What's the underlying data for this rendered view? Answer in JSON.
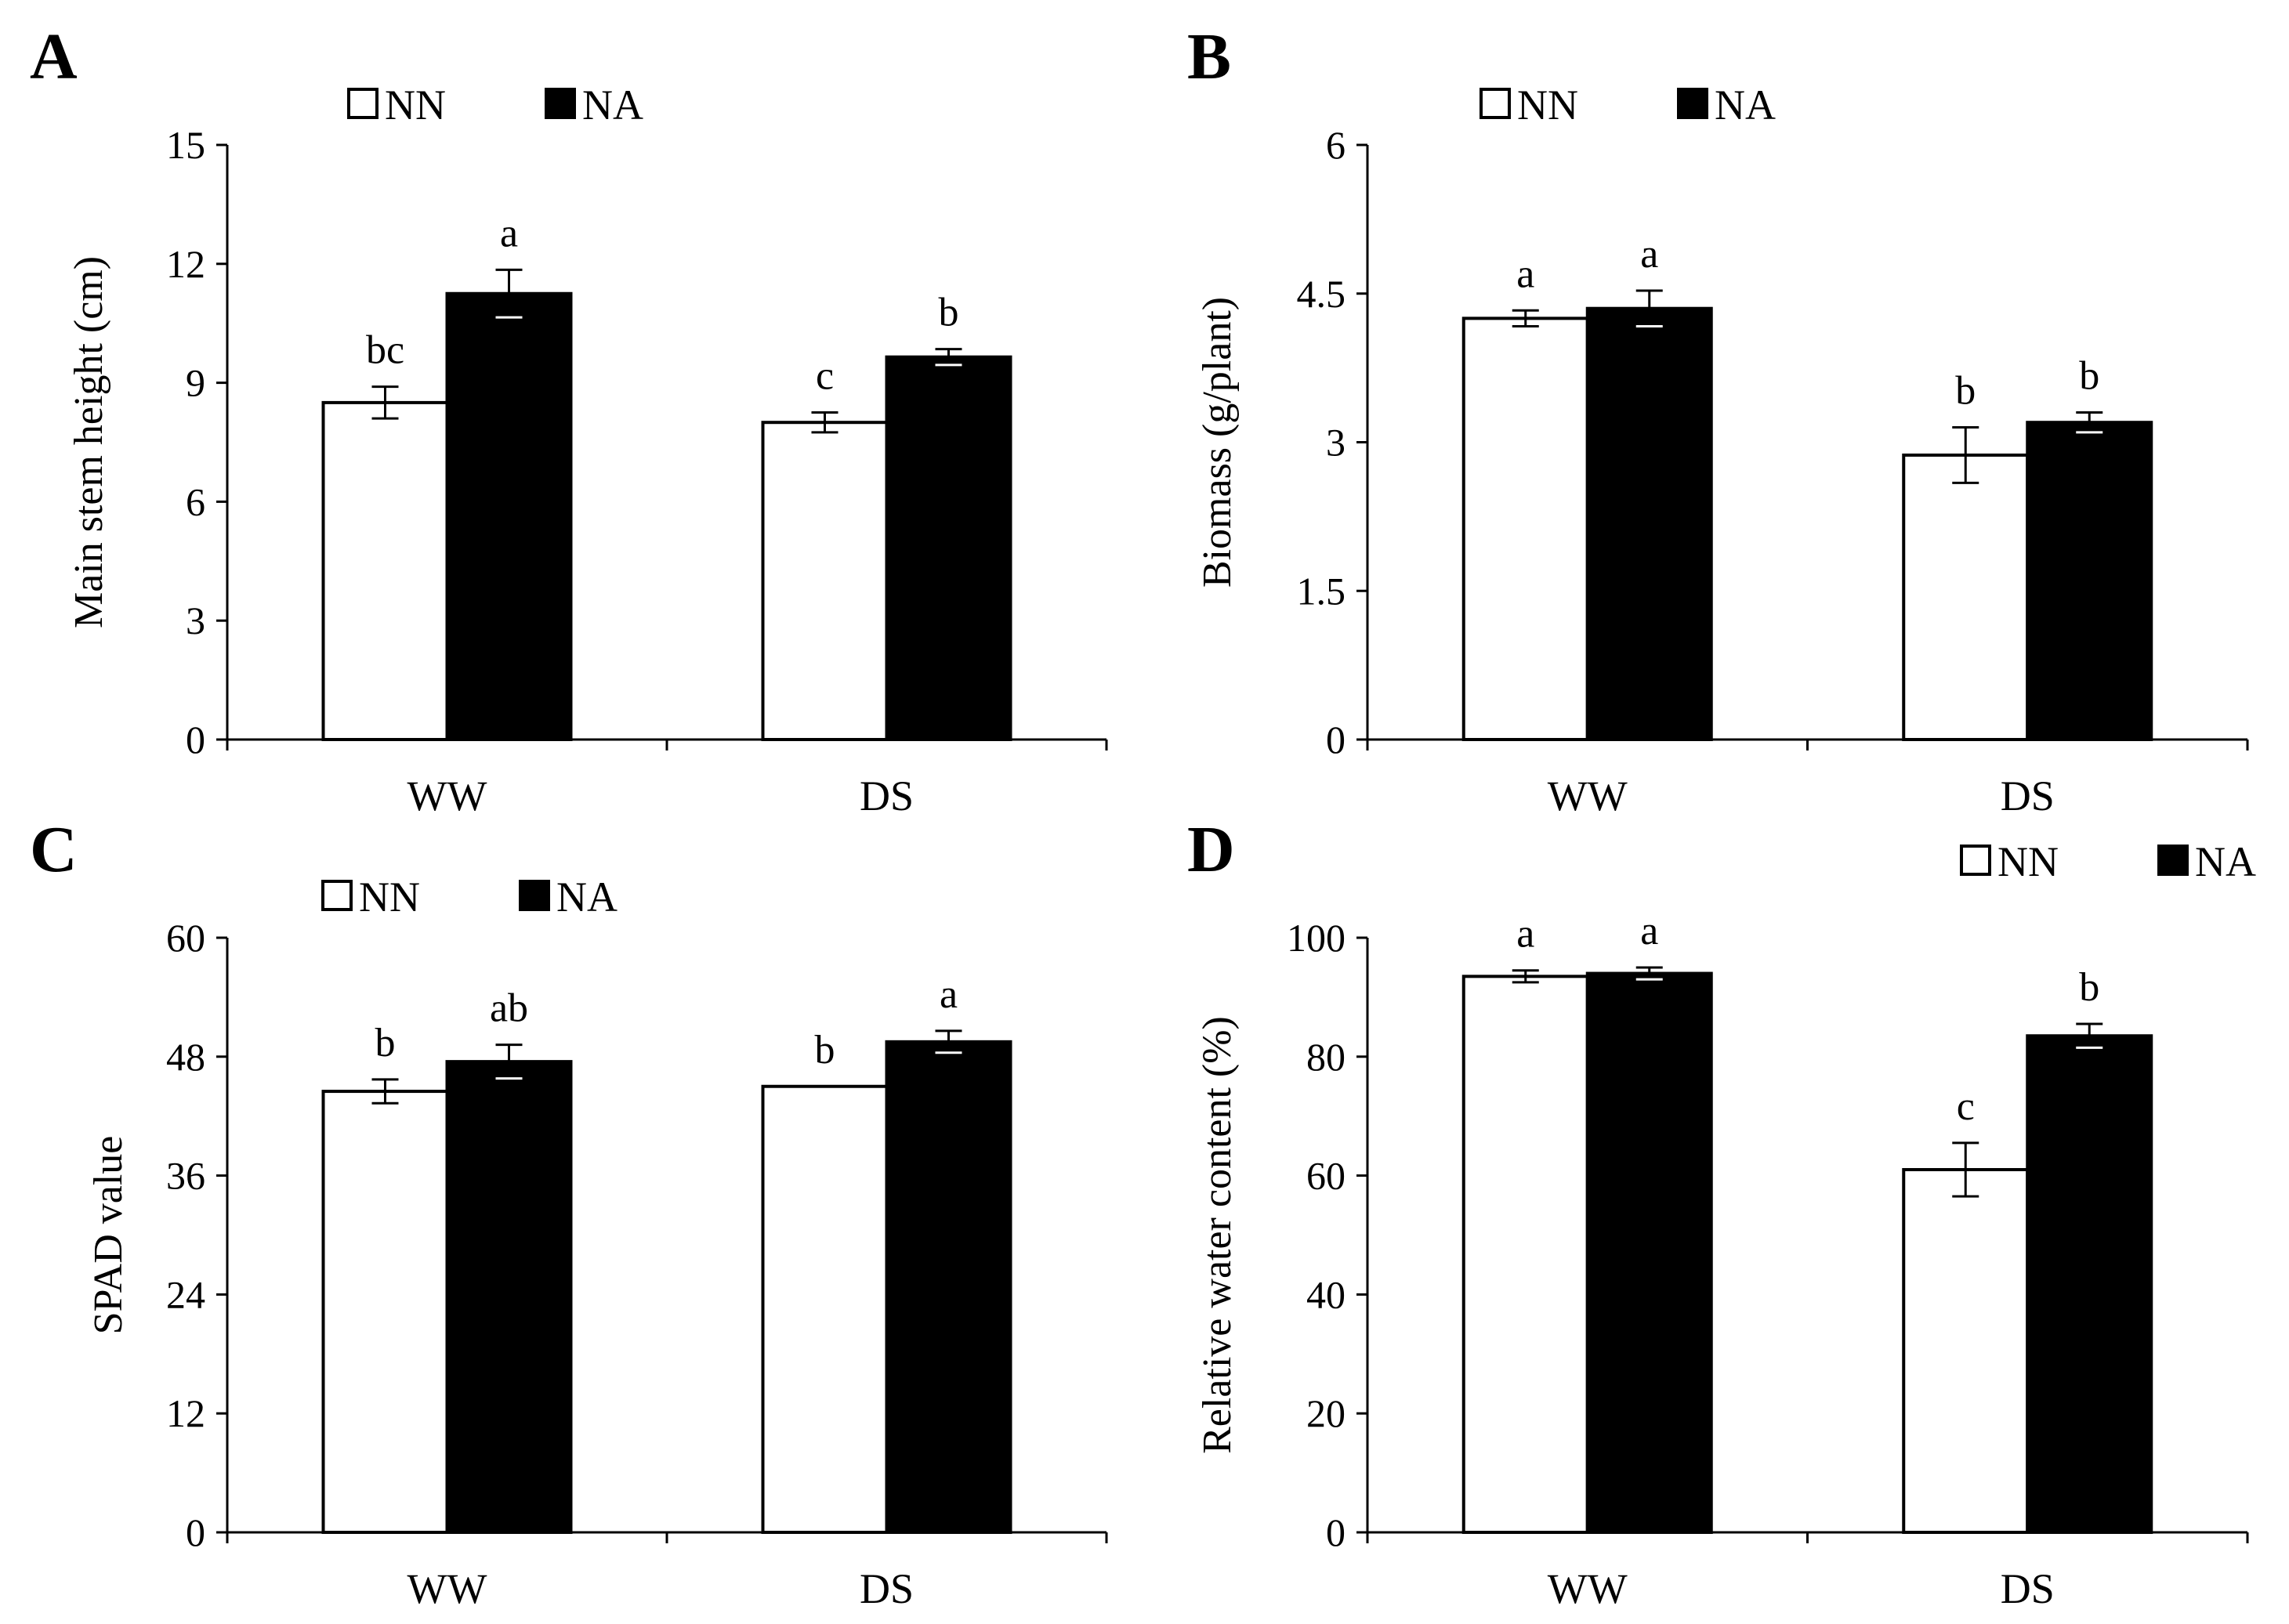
{
  "colors": {
    "NN": "#ffffff",
    "NA": "#000000",
    "stroke": "#000000"
  },
  "chart_data": [
    {
      "panel": "A",
      "type": "bar",
      "categories": [
        "WW",
        "DS"
      ],
      "ylabel": "Main stem height (cm)",
      "ylim": [
        0,
        15
      ],
      "yticks": [
        0,
        3,
        6,
        9,
        12,
        15
      ],
      "legend": [
        {
          "name": "NN",
          "color": "#ffffff"
        },
        {
          "name": "NA",
          "color": "#000000"
        }
      ],
      "series": [
        {
          "name": "NN",
          "values": [
            8.5,
            8.0
          ],
          "errors": [
            0.4,
            0.25
          ],
          "labels": [
            "bc",
            "c"
          ]
        },
        {
          "name": "NA",
          "values": [
            11.25,
            9.65
          ],
          "errors": [
            0.6,
            0.2
          ],
          "labels": [
            "a",
            "b"
          ]
        }
      ]
    },
    {
      "panel": "B",
      "type": "bar",
      "categories": [
        "WW",
        "DS"
      ],
      "ylabel": "Biomass  (g/plant)",
      "ylim": [
        0,
        6
      ],
      "yticks": [
        "0",
        "1.5",
        "3",
        "4.5",
        "6"
      ],
      "legend": [
        {
          "name": "NN",
          "color": "#ffffff"
        },
        {
          "name": "NA",
          "color": "#000000"
        }
      ],
      "series": [
        {
          "name": "NN",
          "values": [
            4.25,
            2.87
          ],
          "errors": [
            0.08,
            0.28
          ],
          "labels": [
            "a",
            "b"
          ]
        },
        {
          "name": "NA",
          "values": [
            4.35,
            3.2
          ],
          "errors": [
            0.18,
            0.1
          ],
          "labels": [
            "a",
            "b"
          ]
        }
      ]
    },
    {
      "panel": "C",
      "type": "bar",
      "categories": [
        "WW",
        "DS"
      ],
      "ylabel": "SPAD value",
      "ylim": [
        0,
        60
      ],
      "yticks": [
        0,
        12,
        24,
        36,
        48,
        60
      ],
      "legend": [
        {
          "name": "NN",
          "color": "#ffffff"
        },
        {
          "name": "NA",
          "color": "#000000"
        }
      ],
      "series": [
        {
          "name": "NN",
          "values": [
            44.5,
            45.0
          ],
          "errors": [
            1.2,
            0.0
          ],
          "labels": [
            "b",
            "b"
          ]
        },
        {
          "name": "NA",
          "values": [
            47.5,
            49.5
          ],
          "errors": [
            1.7,
            1.1
          ],
          "labels": [
            "ab",
            "a"
          ]
        }
      ]
    },
    {
      "panel": "D",
      "type": "bar",
      "categories": [
        "WW",
        "DS"
      ],
      "ylabel": "Relative water content (%)",
      "ylim": [
        0,
        100
      ],
      "yticks": [
        0,
        20,
        40,
        60,
        80,
        100
      ],
      "legend": [
        {
          "name": "NN",
          "color": "#ffffff"
        },
        {
          "name": "NA",
          "color": "#000000"
        }
      ],
      "series": [
        {
          "name": "NN",
          "values": [
            93.5,
            61.0
          ],
          "errors": [
            1.0,
            4.5
          ],
          "labels": [
            "a",
            "c"
          ]
        },
        {
          "name": "NA",
          "values": [
            94.0,
            83.5
          ],
          "errors": [
            1.0,
            2.0
          ],
          "labels": [
            "a",
            "b"
          ]
        }
      ]
    }
  ]
}
